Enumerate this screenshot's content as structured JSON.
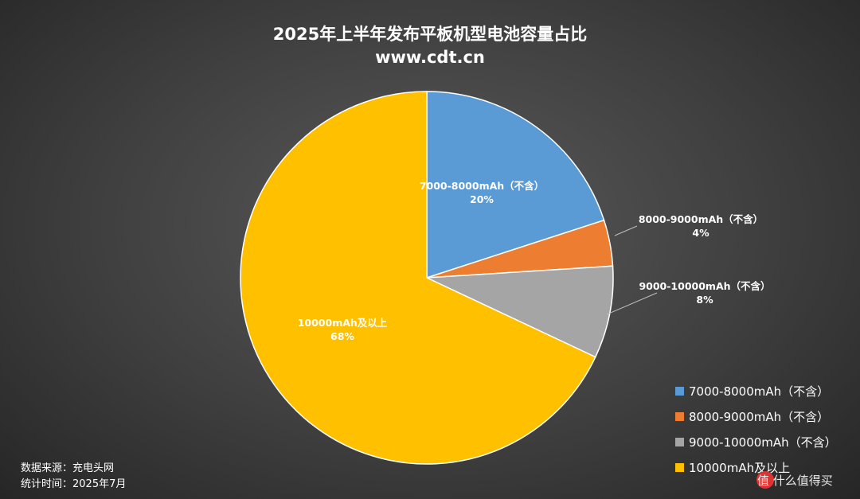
{
  "chart_data": {
    "type": "pie",
    "title": "2025年上半年发布平板机型电池容量占比",
    "subtitle": "www.cdt.cn",
    "slices": [
      {
        "label": "7000-8000mAh（不含）",
        "percent_label": "20%",
        "value": 20,
        "color": "#5b9bd5"
      },
      {
        "label": "8000-9000mAh（不含）",
        "percent_label": "4%",
        "value": 4,
        "color": "#ed7d31"
      },
      {
        "label": "9000-10000mAh（不含）",
        "percent_label": "8%",
        "value": 8,
        "color": "#a5a5a5"
      },
      {
        "label": "10000mAh及以上",
        "percent_label": "68%",
        "value": 68,
        "color": "#ffc000"
      }
    ],
    "legend_position": "bottom-right"
  },
  "source": {
    "line1": "数据来源：充电头网",
    "line2": "统计时间：2025年7月"
  },
  "watermark": {
    "text": "值 什么值得买"
  }
}
